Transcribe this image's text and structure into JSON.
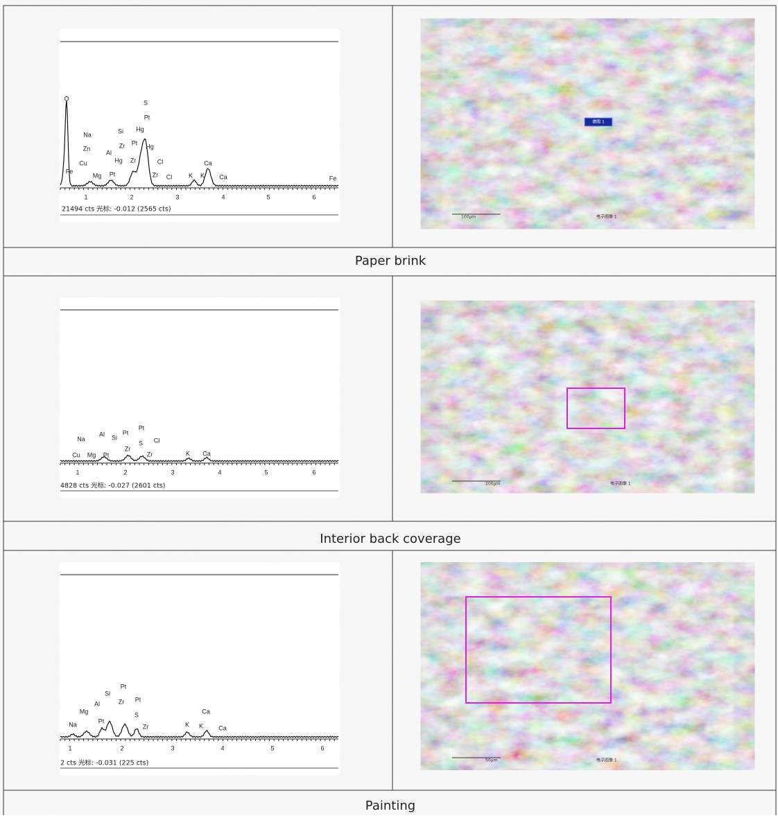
{
  "rows": [
    {
      "spectrum": {
        "peaks": [
          "O",
          "S",
          "Pt",
          "Na",
          "Si",
          "Hg",
          "Zn",
          "Al",
          "Zr",
          "Pt",
          "Hg",
          "Cu",
          "Hg",
          "Zr",
          "Cl",
          "Fe",
          "Mg",
          "Pt",
          "Zr",
          "Cl",
          "K",
          "K",
          "Ca",
          "Ca",
          "Fe"
        ],
        "axis": [
          "1",
          "2",
          "3",
          "4",
          "5",
          "6"
        ],
        "cursor": "21494 cts 光标: -0.012 (2565 cts)"
      },
      "image": {
        "scale": "100μm",
        "caption": "电子图像 1",
        "marker": "谱图 1"
      },
      "caption": "Paper brink"
    },
    {
      "spectrum": {
        "peaks": [
          "Na",
          "Al",
          "Si",
          "Pt",
          "Pt",
          "Zr",
          "S",
          "Cl",
          "Cu",
          "Mg",
          "Pt",
          "Zr",
          "K",
          "Ca"
        ],
        "axis": [
          "1",
          "2",
          "3",
          "4",
          "5",
          "6"
        ],
        "cursor": "4828 cts 光标: -0.027 (2601 cts)"
      },
      "image": {
        "scale": "200μm",
        "caption": "电子图像 1"
      },
      "caption": "Interior back coverage"
    },
    {
      "spectrum": {
        "peaks": [
          "Pt",
          "Si",
          "Pt",
          "Al",
          "Zr",
          "Mg",
          "S",
          "Ca",
          "Na",
          "Pt",
          "Zr",
          "K",
          "K",
          "Ca"
        ],
        "axis": [
          "1",
          "2",
          "3",
          "4",
          "5",
          "6"
        ],
        "cursor": "2 cts 光标: -0.031 (225 cts)"
      },
      "image": {
        "scale": "50μm",
        "caption": "电子图像 1"
      },
      "caption": "Painting"
    }
  ]
}
